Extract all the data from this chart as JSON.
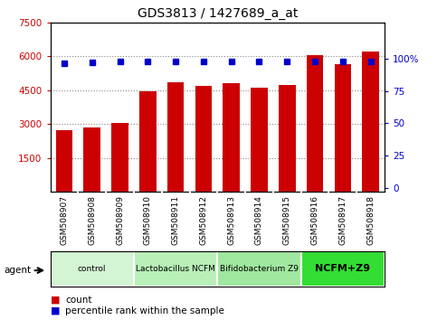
{
  "title": "GDS3813 / 1427689_a_at",
  "samples": [
    "GSM508907",
    "GSM508908",
    "GSM508909",
    "GSM508910",
    "GSM508911",
    "GSM508912",
    "GSM508913",
    "GSM508914",
    "GSM508915",
    "GSM508916",
    "GSM508917",
    "GSM508918"
  ],
  "counts": [
    2750,
    2870,
    3050,
    4450,
    4850,
    4700,
    4800,
    4600,
    4750,
    6050,
    5650,
    6200
  ],
  "percentiles": [
    96.5,
    97,
    97.5,
    98,
    98,
    97.5,
    98,
    97.5,
    98,
    98,
    98,
    98
  ],
  "bar_color": "#cc0000",
  "dot_color": "#0000cc",
  "ylim_left": [
    0,
    7500
  ],
  "yticks_left": [
    1500,
    3000,
    4500,
    6000,
    7500
  ],
  "yticks_right": [
    0,
    25,
    50,
    75,
    100
  ],
  "groups": [
    {
      "label": "control",
      "start": 0,
      "end": 3,
      "color": "#d4f5d4"
    },
    {
      "label": "Lactobacillus NCFM",
      "start": 3,
      "end": 6,
      "color": "#b8f0b8"
    },
    {
      "label": "Bifidobacterium Z9",
      "start": 6,
      "end": 9,
      "color": "#a0e8a0"
    },
    {
      "label": "NCFM+Z9",
      "start": 9,
      "end": 12,
      "color": "#33dd33"
    }
  ],
  "agent_label": "agent",
  "background_color": "#ffffff",
  "tick_label_color_left": "#cc0000",
  "tick_label_color_right": "#0000cc",
  "sample_box_color": "#d0d0d0",
  "legend_count_color": "#cc0000",
  "legend_dot_color": "#0000cc"
}
